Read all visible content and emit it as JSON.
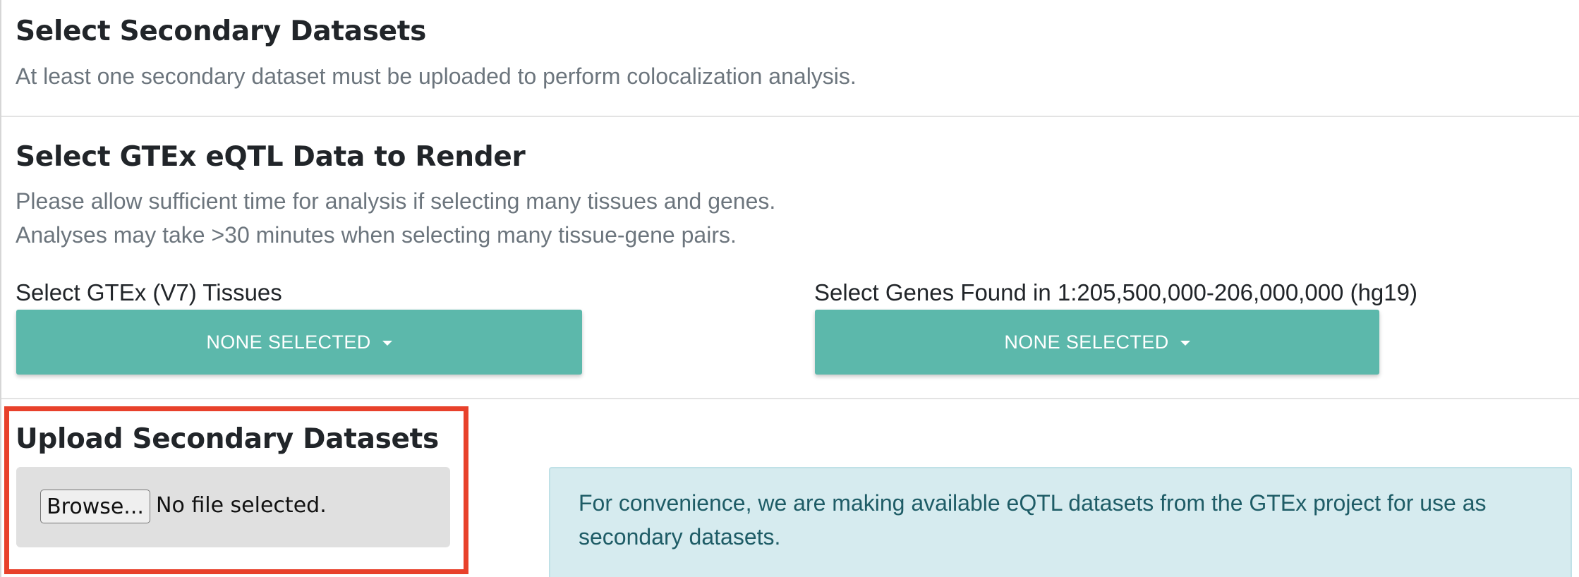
{
  "secondary": {
    "title": "Select Secondary Datasets",
    "subtitle": "At least one secondary dataset must be uploaded to perform colocalization analysis."
  },
  "gtex": {
    "title": "Select GTEx eQTL Data to Render",
    "note_line1": "Please allow sufficient time for analysis if selecting many tissues and genes.",
    "note_line2": "Analyses may take >30 minutes when selecting many tissue-gene pairs.",
    "tissues_label": "Select GTEx (V7) Tissues",
    "tissues_value": "NONE SELECTED",
    "genes_label": "Select Genes Found in 1:205,500,000-206,000,000 (hg19)",
    "genes_value": "NONE SELECTED",
    "dropdown_color": "#5cb8ab"
  },
  "upload": {
    "title": "Upload Secondary Datasets",
    "browse_label": "Browse...",
    "file_status": "No file selected.",
    "highlight_color": "#e8412b"
  },
  "info": {
    "message": "For convenience, we are making available eQTL datasets from the GTEx project for use as secondary datasets."
  }
}
